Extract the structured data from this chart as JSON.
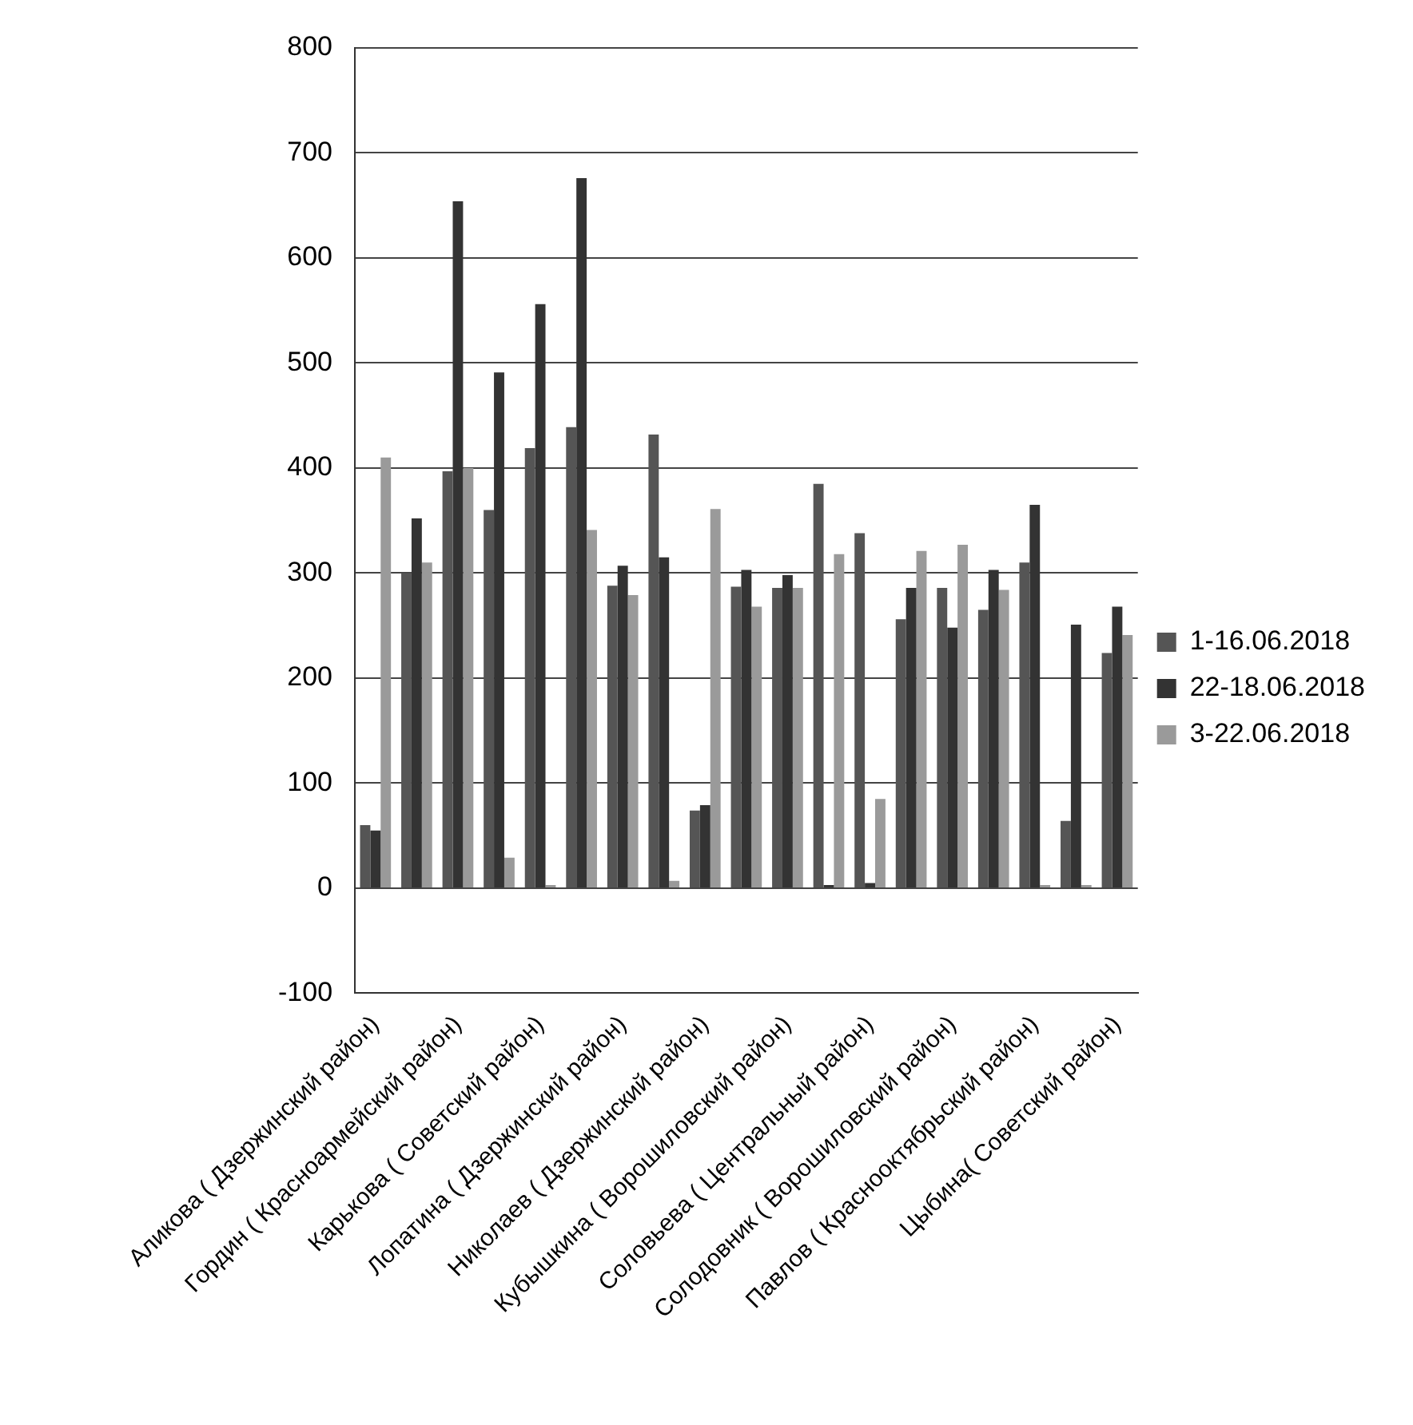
{
  "chart_data": {
    "type": "bar",
    "categories": [
      "Аликова ( Дзержинский район)",
      null,
      "Гордин ( Красноармейский район)",
      null,
      "Карькова ( Советский район)",
      null,
      "Лопатина ( Дзержинский район)",
      null,
      "Николаев ( Дзержинский район)",
      null,
      "Кубышкина ( Ворошиловский район)",
      null,
      "Соловьева ( Центральный район)",
      null,
      "Солодовник ( Ворошиловский район)",
      null,
      "Павлов ( Краснооктябрьский район)",
      null,
      "Цыбина( Советский район)"
    ],
    "series": [
      {
        "name": "1-16.06.2018",
        "color": "#555555",
        "values": [
          60,
          300,
          397,
          360,
          419,
          439,
          288,
          432,
          74,
          287,
          286,
          385,
          338,
          256,
          286,
          265,
          310,
          64,
          224
        ]
      },
      {
        "name": "22-18.06.2018",
        "color": "#333333",
        "values": [
          55,
          352,
          654,
          491,
          556,
          676,
          307,
          315,
          79,
          303,
          298,
          3,
          5,
          286,
          248,
          303,
          365,
          251,
          268
        ]
      },
      {
        "name": "3-22.06.2018",
        "color": "#9a9a9a",
        "values": [
          410,
          310,
          400,
          29,
          3,
          341,
          279,
          7,
          361,
          268,
          286,
          318,
          85,
          321,
          327,
          284,
          3,
          3,
          241
        ]
      }
    ],
    "ylim": [
      -100,
      800
    ],
    "yticks": [
      -100,
      0,
      100,
      200,
      300,
      400,
      500,
      600,
      700,
      800
    ],
    "grid": "y",
    "legend": "right"
  }
}
